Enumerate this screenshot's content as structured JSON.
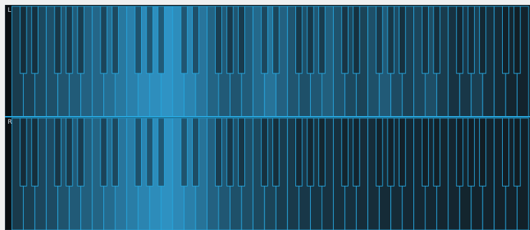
{
  "channels": [
    {
      "id": "left",
      "label": "L",
      "white_key_levels": [
        0.3,
        0.34,
        0.4,
        0.46,
        0.5,
        0.55,
        0.6,
        0.64,
        0.7,
        0.78,
        0.85,
        0.92,
        0.96,
        1.0,
        0.95,
        0.88,
        0.76,
        0.62,
        0.54,
        0.5,
        0.56,
        0.66,
        0.74,
        0.6,
        0.5,
        0.46,
        0.52,
        0.58,
        0.48,
        0.4,
        0.36,
        0.46,
        0.54,
        0.42,
        0.34,
        0.38,
        0.44,
        0.3,
        0.22,
        0.26,
        0.32,
        0.2,
        0.16,
        0.12,
        0.1
      ]
    },
    {
      "id": "right",
      "label": "R",
      "white_key_levels": [
        0.28,
        0.32,
        0.38,
        0.42,
        0.48,
        0.54,
        0.58,
        0.62,
        0.68,
        0.76,
        0.82,
        0.88,
        0.94,
        0.98,
        0.92,
        0.84,
        0.74,
        0.6,
        0.52,
        0.46,
        0.44,
        0.4,
        0.36,
        0.3,
        0.28,
        0.26,
        0.24,
        0.22,
        0.2,
        0.2,
        0.18,
        0.18,
        0.16,
        0.16,
        0.14,
        0.14,
        0.13,
        0.12,
        0.12,
        0.11,
        0.1,
        0.1,
        0.09,
        0.09,
        0.08
      ]
    }
  ],
  "colors": {
    "background": "#0b0e11",
    "outline": "#27a5dc",
    "fill_high": "#2f93c4",
    "fill_low": "#10171c"
  }
}
